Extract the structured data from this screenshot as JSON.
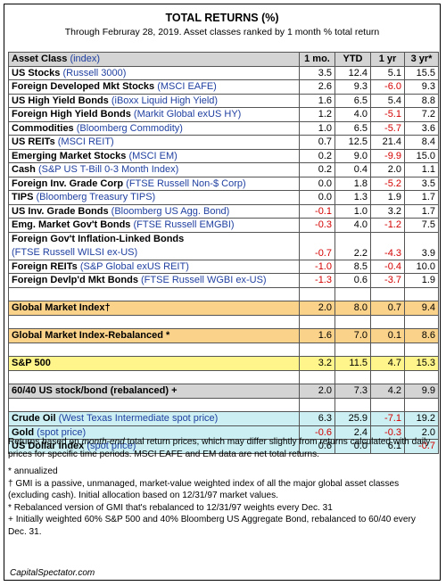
{
  "title": "TOTAL RETURNS (%)",
  "subtitle": "Through Februray 28, 2019. Asset classes ranked by 1 month % total return",
  "header": {
    "asset_class": "Asset Class",
    "index": "(index)",
    "col_1mo": "1 mo.",
    "col_ytd": "YTD",
    "col_1yr": "1 yr",
    "col_3yr": "3 yr*"
  },
  "rows": [
    {
      "name": "US Stocks",
      "index": "(Russell 3000)",
      "m1": "3.5",
      "ytd": "12.4",
      "y1": "5.1",
      "y3": "15.5"
    },
    {
      "name": "Foreign Developed Mkt Stocks",
      "index": "(MSCI EAFE)",
      "m1": "2.6",
      "ytd": "9.3",
      "y1": "-6.0",
      "y3": "9.3"
    },
    {
      "name": "US High Yield Bonds",
      "index": "(iBoxx Liquid High Yield)",
      "m1": "1.6",
      "ytd": "6.5",
      "y1": "5.4",
      "y3": "8.8"
    },
    {
      "name": "Foreign High Yield Bonds",
      "index": "(Markit Global exUS HY)",
      "m1": "1.2",
      "ytd": "4.0",
      "y1": "-5.1",
      "y3": "7.2"
    },
    {
      "name": "Commodities",
      "index": "(Bloomberg Commodity)",
      "m1": "1.0",
      "ytd": "6.5",
      "y1": "-5.7",
      "y3": "3.6"
    },
    {
      "name": "US REITs",
      "index": "(MSCI REIT)",
      "m1": "0.7",
      "ytd": "12.5",
      "y1": "21.4",
      "y3": "8.4"
    },
    {
      "name": "Emerging Market Stocks",
      "index": "(MSCI EM)",
      "m1": "0.2",
      "ytd": "9.0",
      "y1": "-9.9",
      "y3": "15.0"
    },
    {
      "name": "Cash",
      "index": "(S&P US T-Bill 0-3 Month Index)",
      "m1": "0.2",
      "ytd": "0.4",
      "y1": "2.0",
      "y3": "1.1"
    },
    {
      "name": "Foreign Inv. Grade Corp",
      "index": "(FTSE Russell Non-$ Corp)",
      "m1": "0.0",
      "ytd": "1.8",
      "y1": "-5.2",
      "y3": "3.5"
    },
    {
      "name": "TIPS",
      "index": "(Bloomberg Treasury TIPS)",
      "m1": "0.0",
      "ytd": "1.3",
      "y1": "1.9",
      "y3": "1.7"
    },
    {
      "name": "US Inv. Grade Bonds",
      "index": "(Bloomberg US Agg. Bond)",
      "m1": "-0.1",
      "ytd": "1.0",
      "y1": "3.2",
      "y3": "1.7"
    },
    {
      "name": "Emg. Market Gov't Bonds",
      "index": "(FTSE Russell EMGBI)",
      "m1": "-0.3",
      "ytd": "4.0",
      "y1": "-1.2",
      "y3": "7.5"
    }
  ],
  "linked_row": {
    "name": "Foreign Gov't Inflation-Linked Bonds",
    "index": "(FTSE Russell WILSI ex-US)",
    "m1": "-0.7",
    "ytd": "2.2",
    "y1": "-4.3",
    "y3": "3.9"
  },
  "rows2": [
    {
      "name": "Foreign REITs",
      "index": "(S&P Global exUS REIT)",
      "m1": "-1.0",
      "ytd": "8.5",
      "y1": "-0.4",
      "y3": "10.0"
    },
    {
      "name": "Foreign Devlp'd Mkt Bonds",
      "index": "(FTSE Russell WGBI ex-US)",
      "m1": "-1.3",
      "ytd": "0.6",
      "y1": "-3.7",
      "y3": "1.9"
    }
  ],
  "gmi": {
    "name": "Global Market Index†",
    "m1": "2.0",
    "ytd": "8.0",
    "y1": "0.7",
    "y3": "9.4"
  },
  "gmi_rebal": {
    "name": "Global Market Index-Rebalanced *",
    "m1": "1.6",
    "ytd": "7.0",
    "y1": "0.1",
    "y3": "8.6"
  },
  "sp500": {
    "name": "S&P 500",
    "m1": "3.2",
    "ytd": "11.5",
    "y1": "4.7",
    "y3": "15.3"
  },
  "sixty_forty": {
    "name": "60/40 US stock/bond (rebalanced) +",
    "m1": "2.0",
    "ytd": "7.3",
    "y1": "4.2",
    "y3": "9.9"
  },
  "commodities": [
    {
      "name": "Crude Oil",
      "index": "(West Texas Intermediate spot price)",
      "m1": "6.3",
      "ytd": "25.9",
      "y1": "-7.1",
      "y3": "19.2"
    },
    {
      "name": "Gold",
      "index": "(spot price)",
      "m1": "-0.6",
      "ytd": "2.4",
      "y1": "-0.3",
      "y3": "2.0"
    },
    {
      "name": "US Dollar Index",
      "index": "(spot price)",
      "m1": "0.6",
      "ytd": "0.0",
      "y1": "6.1",
      "y3": "-0.7"
    }
  ],
  "notes": {
    "p1_a": "Returns based on ",
    "p1_em": "month-end",
    "p1_b": " total return prices, which may differ slightly from returns calculated with daily prices for specific time periods. MSCI EAFE and EM data are net total returns.",
    "annualized": "* annualized",
    "gmi": "† GMI is a passive, unmanaged, market-value weighted index of all the major global asset classes (excluding cash). Initial allocation based on 12/31/97 market values.",
    "rebal": "* Rebalanced version of GMI that's rebalanced to 12/31/97 weights every Dec. 31",
    "sixty": "+ Initially weighted 60% S&P 500 and 40% Bloomberg US Aggregate Bond, rebalanced to 60/40 every Dec. 31."
  },
  "footer": "CapitalSpectator.com",
  "colors": {
    "negative": "#d40000",
    "index_text": "#1f3fa0",
    "gmi_bg": "#fbd28a",
    "sp500_bg": "#fff58a",
    "header_bg": "#d4d4d4",
    "commodity_bg": "#cbeff2"
  }
}
